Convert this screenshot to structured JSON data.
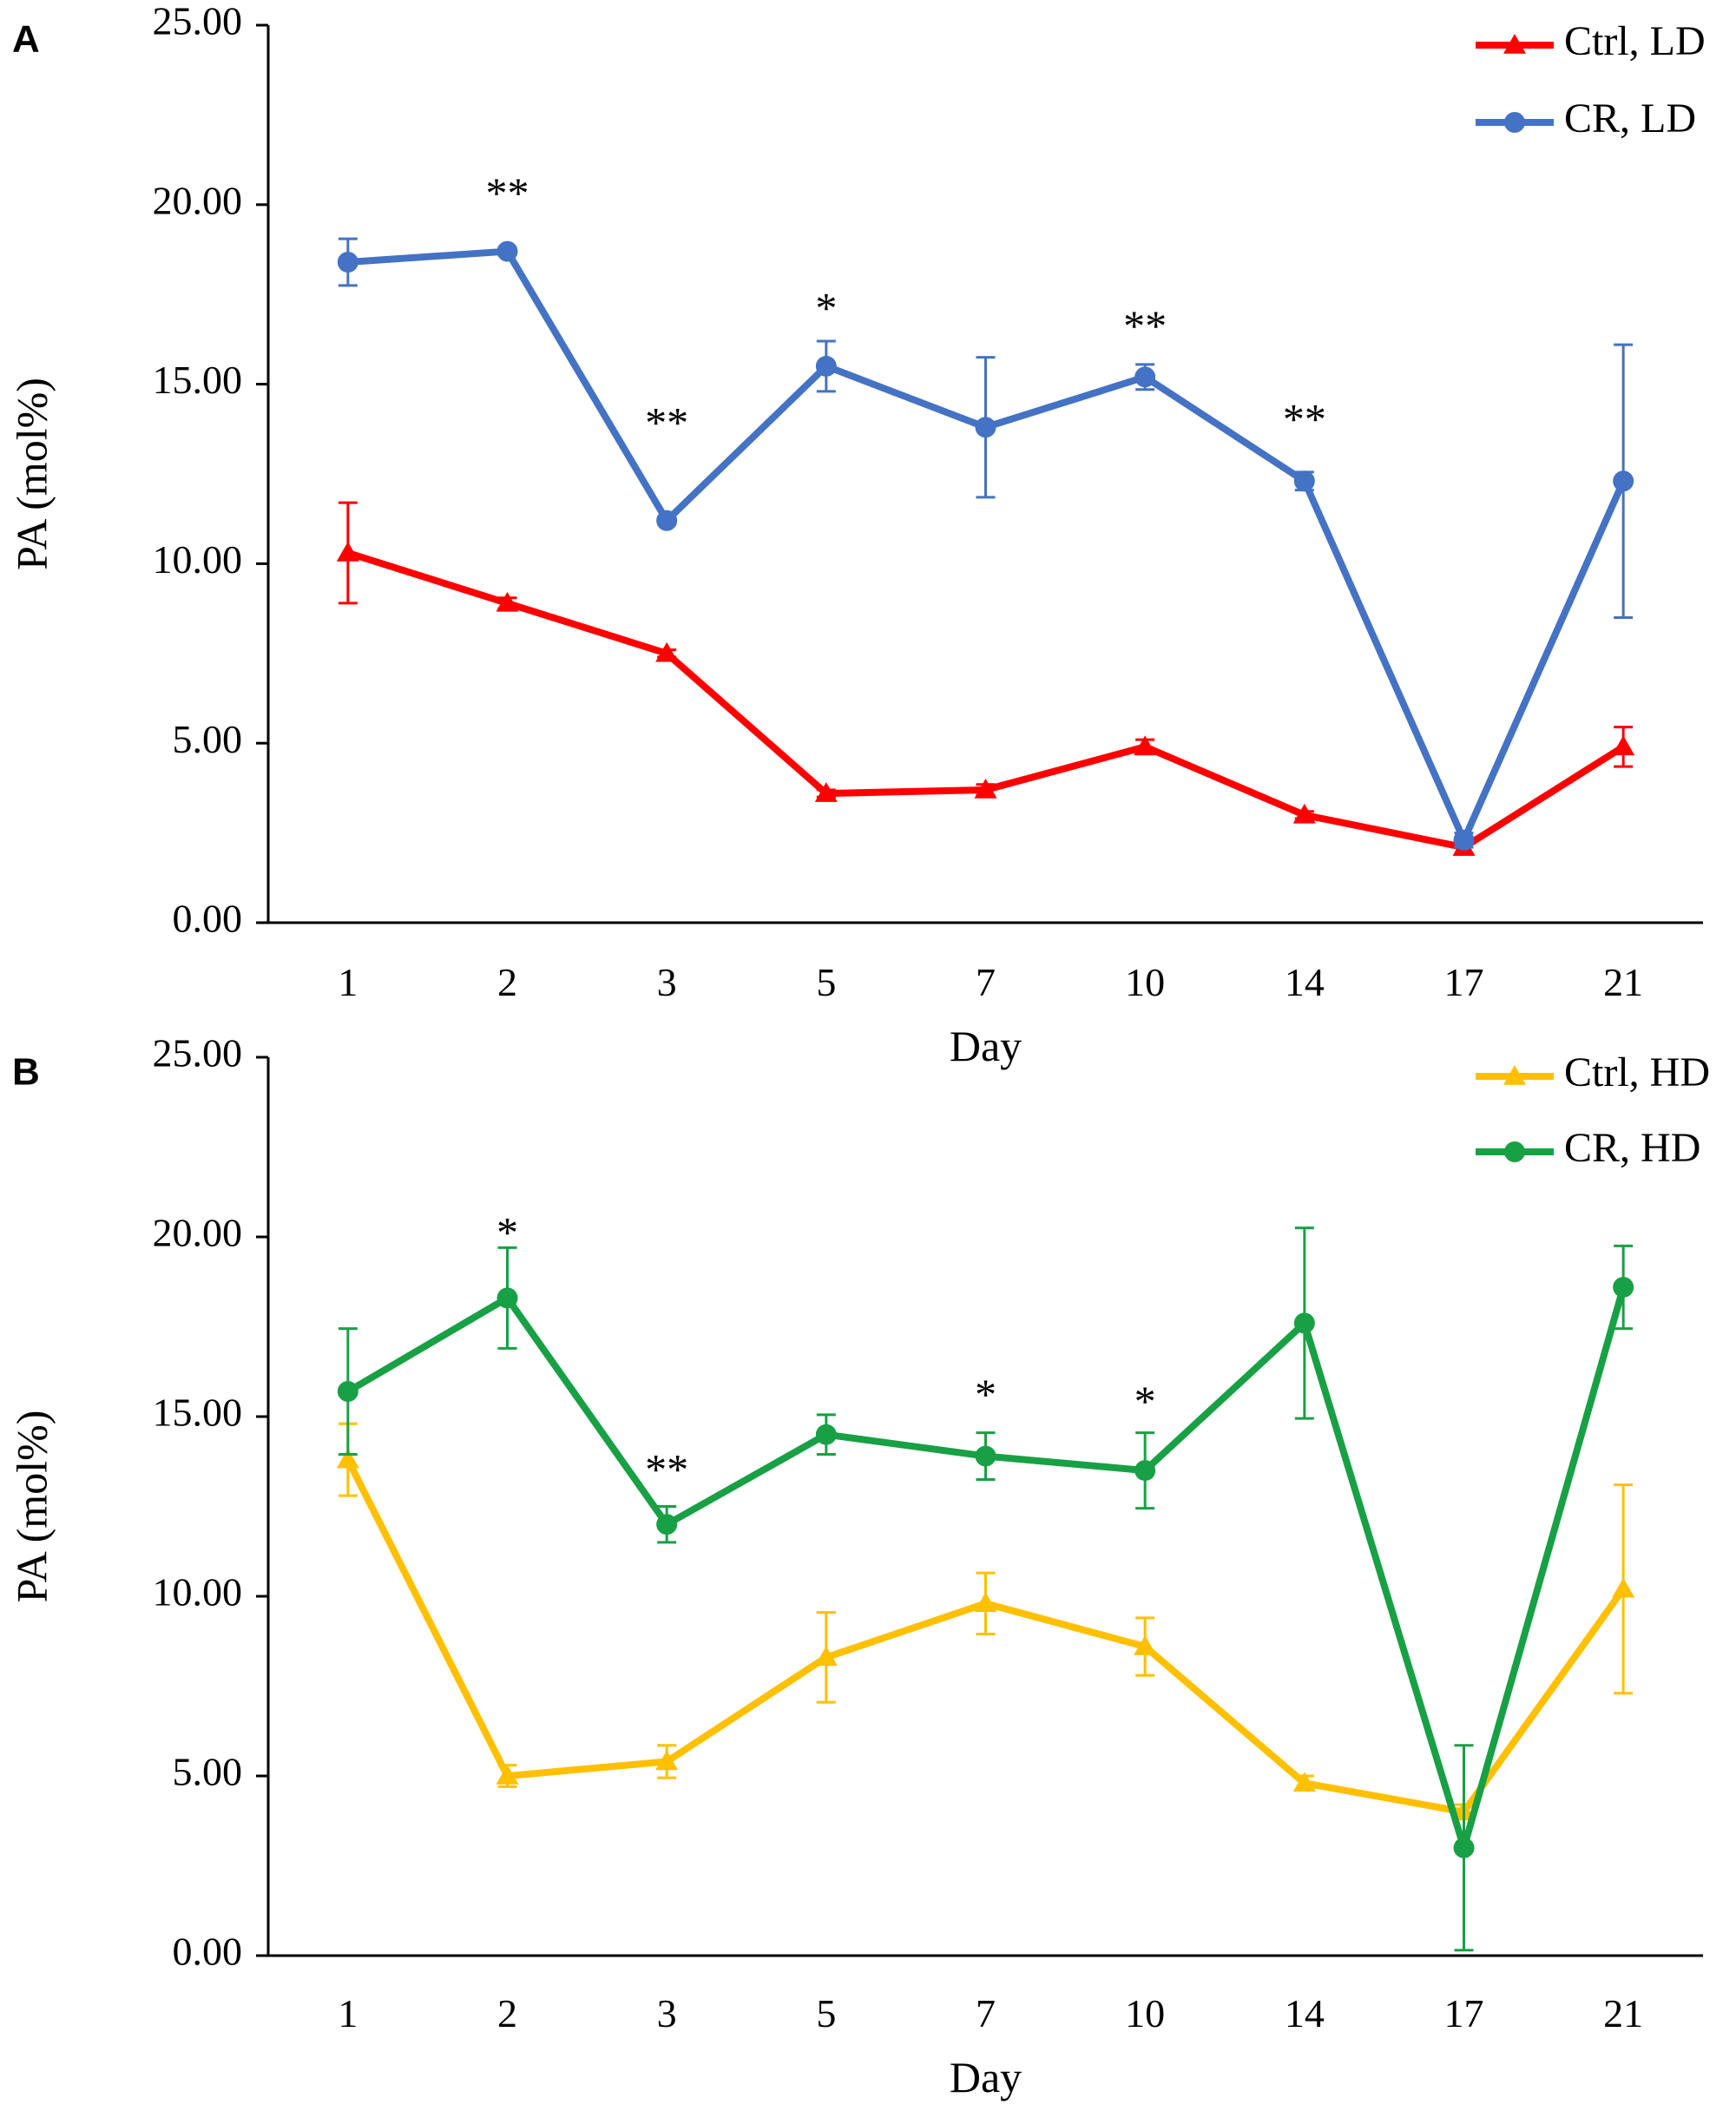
{
  "chart_data": [
    {
      "type": "line",
      "panel_label": "A",
      "categories": [
        "1",
        "2",
        "3",
        "5",
        "7",
        "10",
        "14",
        "17",
        "21"
      ],
      "xlabel": "Day",
      "ylabel": "PA (mol%)",
      "ylim": [
        0,
        25
      ],
      "yticks": [
        "0.00",
        "5.00",
        "10.00",
        "15.00",
        "20.00",
        "25.00"
      ],
      "grid": false,
      "legend_position": "top-right",
      "series": [
        {
          "name": "Ctrl, LD",
          "color": "#ff0000",
          "marker": "triangle",
          "values": [
            10.3,
            8.9,
            7.5,
            3.6,
            3.7,
            4.9,
            3.0,
            2.1,
            4.9
          ],
          "errors": [
            1.4,
            0.15,
            0.1,
            0.1,
            0.15,
            0.2,
            0.1,
            0.2,
            0.55
          ]
        },
        {
          "name": "CR, LD",
          "color": "#4472c4",
          "marker": "circle",
          "values": [
            18.4,
            18.7,
            11.2,
            15.5,
            13.8,
            15.2,
            12.3,
            2.3,
            12.3
          ],
          "errors": [
            0.65,
            0.1,
            0.1,
            0.7,
            1.95,
            0.35,
            0.25,
            0.2,
            3.8
          ]
        }
      ],
      "annotations": [
        {
          "text": "**",
          "category": "2",
          "y": 20.2
        },
        {
          "text": "**",
          "category": "3",
          "y": 13.8
        },
        {
          "text": "*",
          "category": "5",
          "y": 17.0
        },
        {
          "text": "**",
          "category": "10",
          "y": 16.5
        },
        {
          "text": "**",
          "category": "14",
          "y": 13.9
        }
      ]
    },
    {
      "type": "line",
      "panel_label": "B",
      "categories": [
        "1",
        "2",
        "3",
        "5",
        "7",
        "10",
        "14",
        "17",
        "21"
      ],
      "xlabel": "Day",
      "ylabel": "PA (mol%)",
      "ylim": [
        0,
        25
      ],
      "yticks": [
        "0.00",
        "5.00",
        "10.00",
        "15.00",
        "20.00",
        "25.00"
      ],
      "grid": false,
      "legend_position": "top-right",
      "series": [
        {
          "name": "Ctrl, HD",
          "color": "#ffc000",
          "marker": "triangle",
          "values": [
            13.8,
            5.0,
            5.4,
            8.3,
            9.8,
            8.6,
            4.8,
            4.0,
            10.2
          ],
          "errors": [
            1.0,
            0.3,
            0.45,
            1.25,
            0.85,
            0.8,
            0.2,
            0.2,
            2.9
          ]
        },
        {
          "name": "CR, HD",
          "color": "#18a045",
          "marker": "circle",
          "values": [
            15.7,
            18.3,
            12.0,
            14.5,
            13.9,
            13.5,
            17.6,
            3.0,
            18.6
          ],
          "errors": [
            1.75,
            1.4,
            0.5,
            0.55,
            0.65,
            1.05,
            2.65,
            2.85,
            1.15
          ]
        }
      ],
      "annotations": [
        {
          "text": "*",
          "category": "2",
          "y": 20.0
        },
        {
          "text": "**",
          "category": "3",
          "y": 13.4
        },
        {
          "text": "*",
          "category": "7",
          "y": 15.5
        },
        {
          "text": "*",
          "category": "10",
          "y": 15.3
        }
      ]
    }
  ]
}
